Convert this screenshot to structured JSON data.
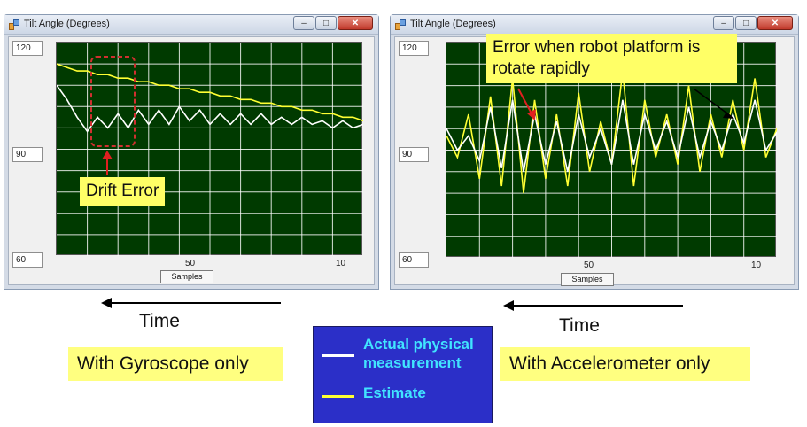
{
  "left_window": {
    "title": "Tilt Angle (Degrees)",
    "y_labels": [
      "120",
      "90",
      "60"
    ],
    "x_tick_labels": [
      "50",
      "10"
    ],
    "x_axis_button": "Samples",
    "callout": "Drift Error"
  },
  "right_window": {
    "title": "Tilt Angle (Degrees)",
    "y_labels": [
      "120",
      "90",
      "60"
    ],
    "x_tick_labels": [
      "50",
      "10"
    ],
    "x_axis_button": "Samples",
    "callout_line1": "Error when robot platform is",
    "callout_line2": "rotate rapidly"
  },
  "window_controls": {
    "minimize": "–",
    "maximize": "□",
    "close": "✕"
  },
  "time_label_left": "Time",
  "time_label_right": "Time",
  "caption_left": "With Gyroscope only",
  "caption_right": "With Accelerometer only",
  "legend": {
    "actual_line1": "Actual physical",
    "actual_line2": "measurement",
    "estimate": "Estimate"
  },
  "colors": {
    "plot_background": "#003a00",
    "grid": "#ffffff",
    "actual_series": "#ffffff",
    "estimate_series": "#ffff33",
    "legend_background": "#2b2fc8",
    "legend_text": "#41e4ff",
    "callout_background": "#ffff66",
    "drift_box": "#d03030",
    "red_arrow": "#e02020"
  },
  "chart_data": [
    {
      "type": "line",
      "ylim": [
        60,
        120
      ],
      "series": [
        {
          "values": [
            114,
            113,
            112,
            112,
            111,
            111,
            110,
            110,
            109,
            109,
            108,
            108,
            107,
            107,
            106,
            106,
            105,
            105,
            104,
            104,
            103,
            103,
            102,
            102,
            101,
            101,
            100,
            100,
            99,
            99,
            98
          ]
        },
        {
          "values": [
            108,
            104,
            99,
            95,
            99,
            96,
            100,
            96,
            101,
            97,
            101,
            97,
            102,
            98,
            101,
            97,
            100,
            97,
            100,
            97,
            100,
            97,
            99,
            97,
            99,
            97,
            98,
            96,
            98,
            96,
            97
          ]
        }
      ]
    },
    {
      "type": "line",
      "ylim": [
        60,
        120
      ],
      "series": [
        {
          "values": [
            94,
            88,
            100,
            82,
            105,
            80,
            110,
            78,
            104,
            82,
            100,
            80,
            106,
            84,
            98,
            86,
            112,
            80,
            104,
            88,
            100,
            86,
            108,
            84,
            100,
            88,
            104,
            90,
            110,
            88,
            96
          ]
        },
        {
          "values": [
            96,
            90,
            94,
            87,
            102,
            85,
            104,
            84,
            100,
            86,
            98,
            84,
            100,
            88,
            96,
            86,
            104,
            86,
            100,
            90,
            98,
            88,
            102,
            88,
            98,
            90,
            100,
            92,
            104,
            90,
            95
          ]
        }
      ]
    }
  ]
}
